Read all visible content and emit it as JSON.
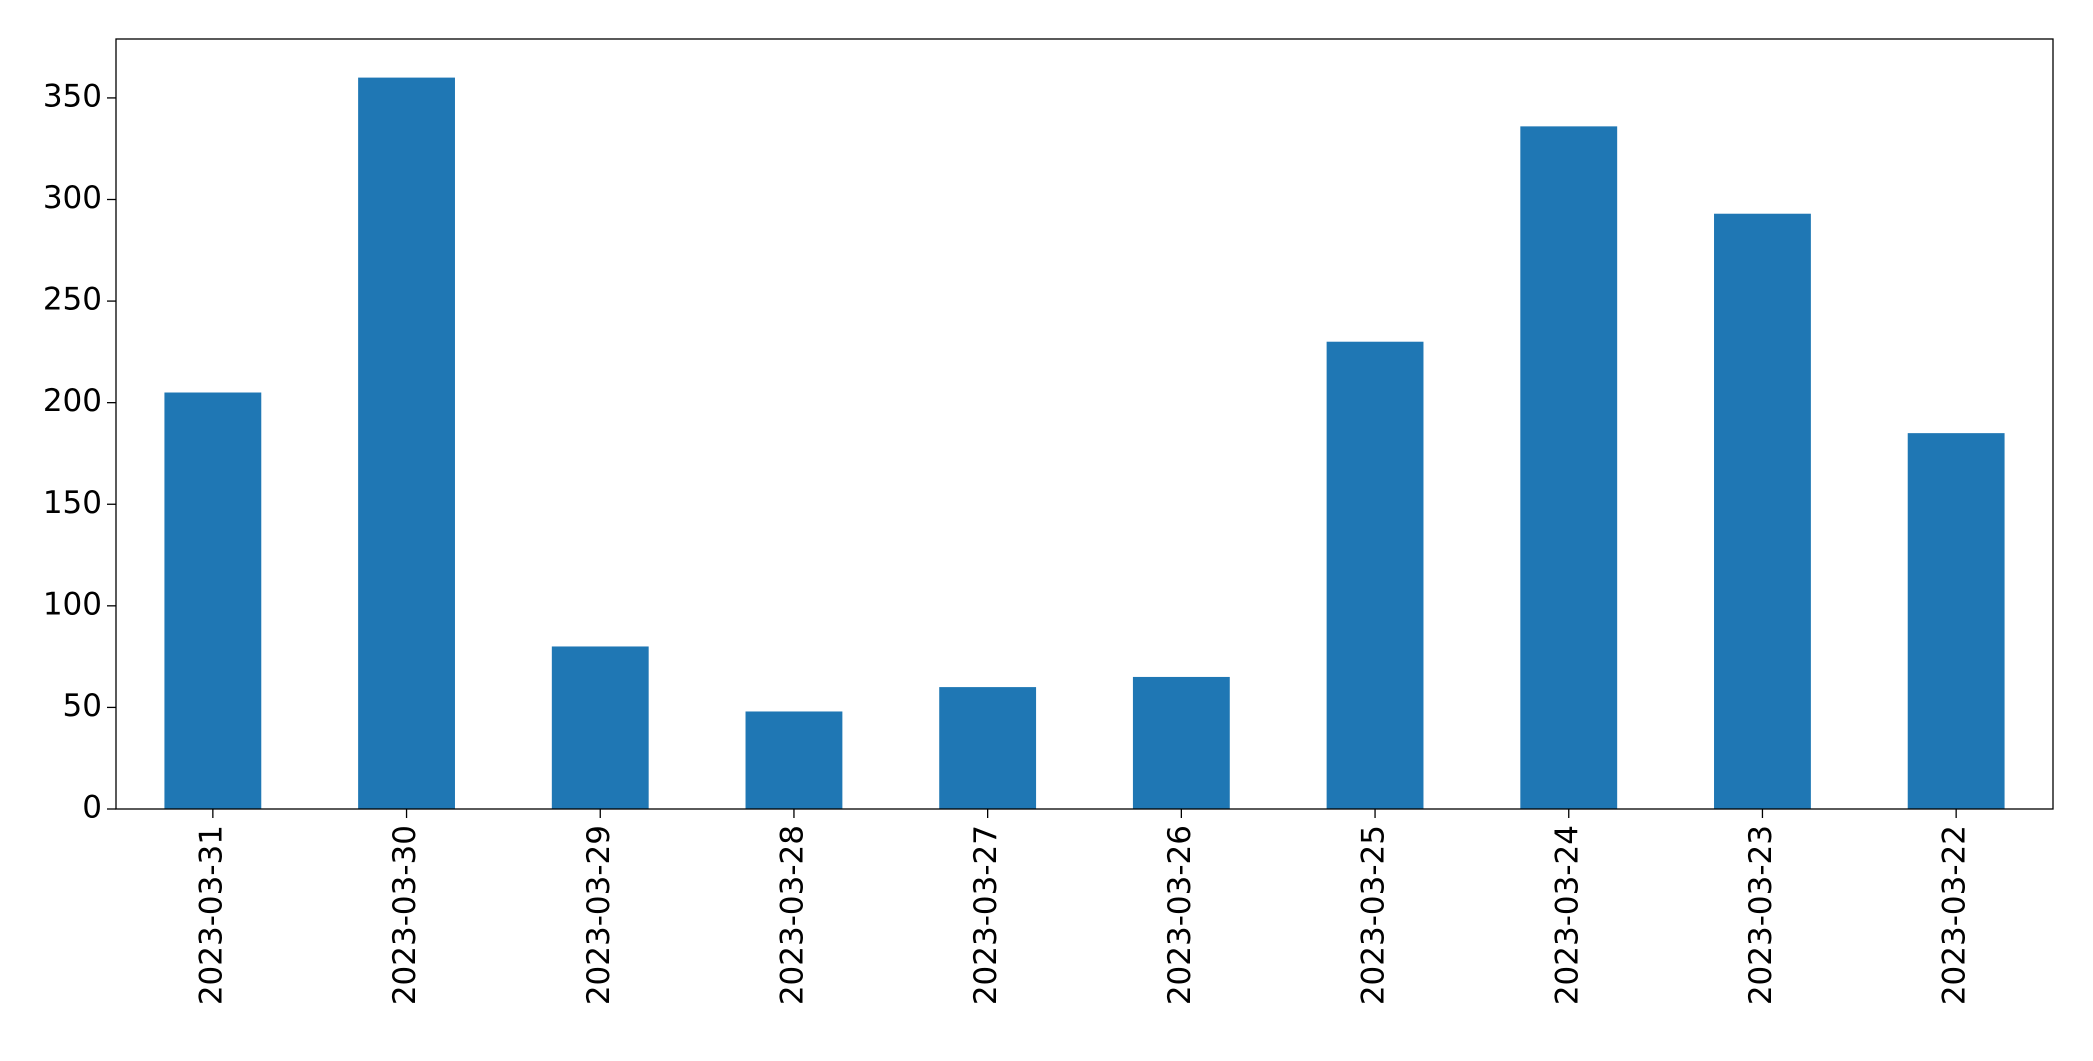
{
  "chart_data": {
    "type": "bar",
    "categories": [
      "2023-03-31",
      "2023-03-30",
      "2023-03-29",
      "2023-03-28",
      "2023-03-27",
      "2023-03-26",
      "2023-03-25",
      "2023-03-24",
      "2023-03-23",
      "2023-03-22"
    ],
    "values": [
      205,
      360,
      80,
      48,
      60,
      65,
      230,
      336,
      293,
      185
    ],
    "color": "#1f77b4",
    "ylim": [
      0,
      379
    ],
    "yticks": [
      0,
      50,
      100,
      150,
      200,
      250,
      300,
      350
    ],
    "grid": false
  }
}
